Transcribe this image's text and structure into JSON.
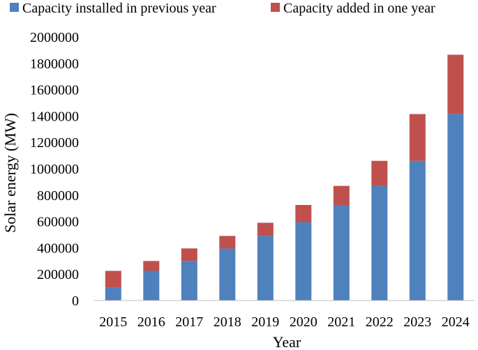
{
  "chart_data": {
    "type": "stacked-bar",
    "categories": [
      "2015",
      "2016",
      "2017",
      "2018",
      "2019",
      "2020",
      "2021",
      "2022",
      "2023",
      "2024"
    ],
    "series": [
      {
        "name": "Capacity installed in previous year",
        "color": "#4f81bd",
        "values": [
          100000,
          225000,
          300000,
          395000,
          490000,
          595000,
          725000,
          870000,
          1060000,
          1415000
        ]
      },
      {
        "name": "Capacity added in one year",
        "color": "#c0504d",
        "values": [
          125000,
          75000,
          95000,
          95000,
          100000,
          130000,
          145000,
          190000,
          355000,
          450000
        ]
      }
    ],
    "xlabel": "Year",
    "ylabel": "Solar energy (MW)",
    "ylim": [
      0,
      2000000
    ],
    "yticks": [
      0,
      200000,
      400000,
      600000,
      800000,
      1000000,
      1200000,
      1400000,
      1600000,
      1800000,
      2000000
    ],
    "ytick_labels": [
      "0",
      "200000",
      "400000",
      "600000",
      "800000",
      "1000000",
      "1200000",
      "1400000",
      "1600000",
      "1800000",
      "2000000"
    ],
    "grid": false,
    "legend": "top"
  }
}
